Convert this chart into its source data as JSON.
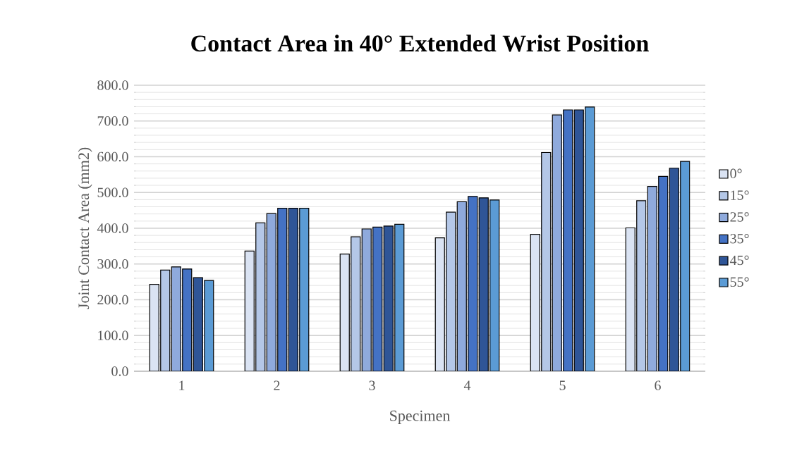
{
  "chart_data": {
    "type": "bar",
    "title": "Contact Area in 40° Extended Wrist Position",
    "xlabel": "Specimen",
    "ylabel": "Joint Contact Area (mm2)",
    "categories": [
      "1",
      "2",
      "3",
      "4",
      "5",
      "6"
    ],
    "series": [
      {
        "name": "0°",
        "color": "#dae3f3",
        "values": [
          243,
          336,
          328,
          373,
          383,
          401
        ]
      },
      {
        "name": "15°",
        "color": "#b4c7e7",
        "values": [
          283,
          415,
          376,
          445,
          612,
          477
        ]
      },
      {
        "name": "25°",
        "color": "#8faadc",
        "values": [
          292,
          441,
          398,
          474,
          717,
          517
        ]
      },
      {
        "name": "35°",
        "color": "#4472c4",
        "values": [
          286,
          456,
          403,
          489,
          731,
          545
        ]
      },
      {
        "name": "45°",
        "color": "#2f5597",
        "values": [
          262,
          456,
          406,
          485,
          731,
          568
        ]
      },
      {
        "name": "55°",
        "color": "#5b9bd5",
        "values": [
          254,
          456,
          411,
          479,
          739,
          587
        ]
      }
    ],
    "ylim": [
      0,
      800
    ],
    "yticks": [
      {
        "value": 0,
        "label": "0.0"
      },
      {
        "value": 100,
        "label": "100.0"
      },
      {
        "value": 200,
        "label": "200.0"
      },
      {
        "value": 300,
        "label": "300.0"
      },
      {
        "value": 400,
        "label": "400.0"
      },
      {
        "value": 500,
        "label": "500.0"
      },
      {
        "value": 600,
        "label": "600.0"
      },
      {
        "value": 700,
        "label": "700.0"
      },
      {
        "value": 800,
        "label": "800.0"
      }
    ],
    "grid": "y",
    "legend": "right"
  }
}
